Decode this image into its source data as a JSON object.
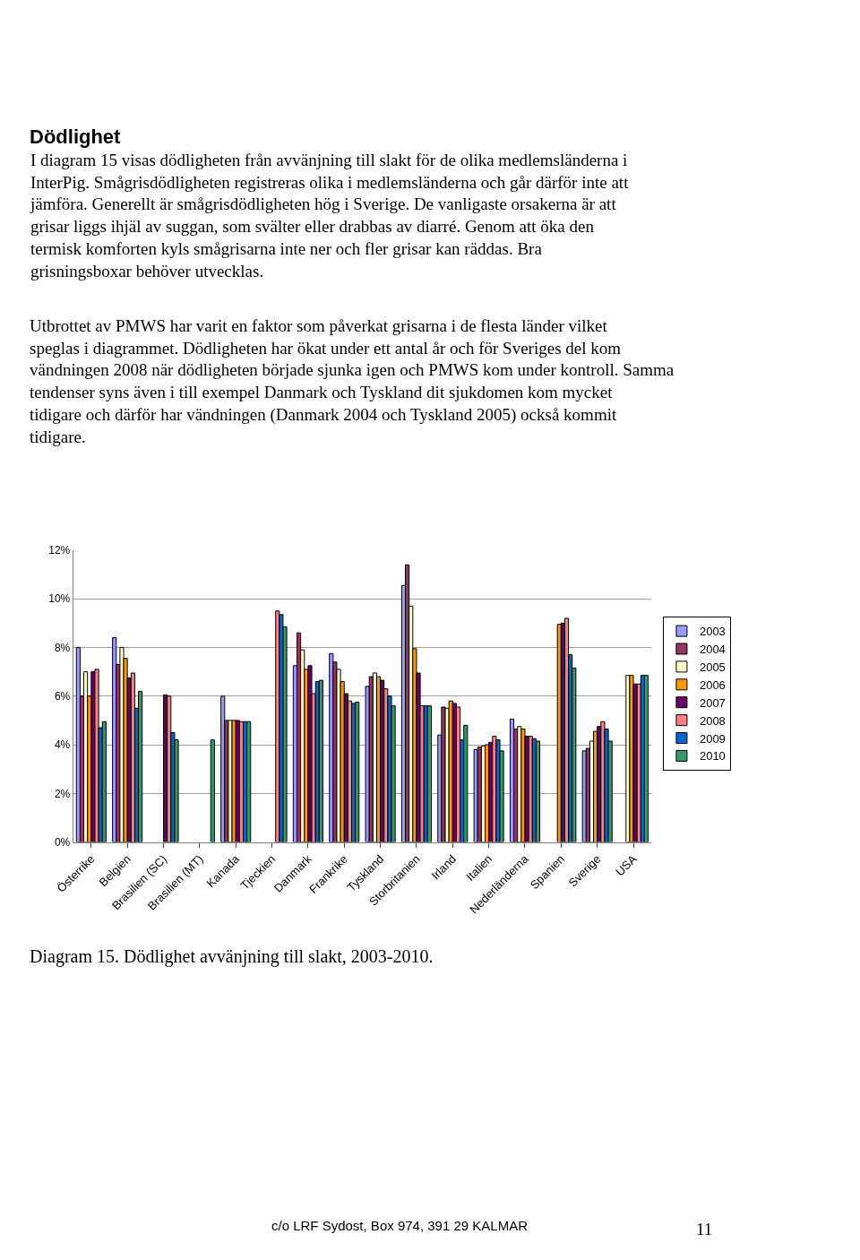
{
  "chart_data": {
    "type": "bar",
    "title": "Diagram 15. Dödlighet avvänjning till slakt, 2003-2010.",
    "annotations": [
      "Dödlighet",
      "I diagram 15 visas dödligheten från avvänjning till slakt för de olika medlemsländerna i InterPig. Smågrisdödligheten registreras olika i medlemsländerna och går därför inte att jämföra. Generellt är smågrisdödligheten hög i Sverige. De vanligaste orsakerna är att grisar liggs ihjäl av suggan, som svälter eller drabbas av diarré. Genom att öka den termisk komforten kyls smågrisarna inte ner och fler grisar kan räddas. Bra grisningsboxar behöver utvecklas.",
      "Utbrottet av PMWS har varit en faktor som påverkat grisarna i de flesta länder vilket speglas i diagrammet. Dödligheten har ökat under ett antal år och för Sveriges del kom vändningen 2008 när dödligheten började sjunka igen och PMWS kom under kontroll. Samma tendenser syns även i till exempel Danmark och Tyskland dit sjukdomen kom mycket tidigare och därför har vändningen (Danmark 2004 och Tyskland 2005) också kommit tidigare.",
      "c/o LRF Sydost, Box 974, 391 29 KALMAR",
      "11"
    ],
    "categories": [
      "Österrike",
      "Belgien",
      "Brasilien (SC)",
      "Brasilien (MT)",
      "Kanada",
      "Tjeckien",
      "Danmark",
      "Frankrike",
      "Tyskland",
      "Storbritanien",
      "Irland",
      "Italien",
      "Nederländerna",
      "Spanien",
      "Sverige",
      "USA"
    ],
    "series": [
      {
        "name": "2003",
        "color": "#9999ff",
        "values": [
          8.0,
          8.4,
          null,
          null,
          6.0,
          null,
          7.25,
          7.75,
          6.4,
          10.55,
          4.4,
          3.8,
          5.05,
          null,
          3.75,
          null
        ]
      },
      {
        "name": "2004",
        "color": "#993366",
        "values": [
          6.0,
          7.3,
          null,
          null,
          5.0,
          null,
          8.6,
          7.4,
          6.8,
          11.4,
          5.55,
          3.9,
          4.65,
          null,
          3.85,
          null
        ]
      },
      {
        "name": "2005",
        "color": "#ffffcc",
        "values": [
          7.0,
          8.0,
          null,
          null,
          5.0,
          null,
          7.9,
          7.1,
          6.95,
          9.7,
          5.5,
          3.95,
          4.75,
          null,
          4.15,
          6.85
        ]
      },
      {
        "name": "2006",
        "color": "#ff9900",
        "values": [
          6.0,
          7.55,
          null,
          null,
          5.0,
          null,
          7.1,
          6.6,
          6.8,
          7.95,
          5.8,
          4.0,
          4.65,
          8.95,
          4.55,
          6.85
        ]
      },
      {
        "name": "2007",
        "color": "#660066",
        "values": [
          7.0,
          6.75,
          6.05,
          null,
          5.0,
          null,
          7.25,
          6.1,
          6.65,
          6.95,
          5.7,
          4.1,
          4.35,
          9.0,
          4.75,
          6.5
        ]
      },
      {
        "name": "2008",
        "color": "#ff8080",
        "values": [
          7.1,
          6.95,
          6.0,
          null,
          4.95,
          9.5,
          6.1,
          5.8,
          6.3,
          5.6,
          5.55,
          4.35,
          4.35,
          9.2,
          4.95,
          6.5
        ]
      },
      {
        "name": "2009",
        "color": "#0066cc",
        "values": [
          4.7,
          5.5,
          4.5,
          null,
          4.95,
          9.35,
          6.6,
          5.7,
          6.0,
          5.6,
          4.2,
          4.2,
          4.25,
          7.7,
          4.65,
          6.85
        ]
      },
      {
        "name": "2010",
        "color": "#339966",
        "values": [
          4.95,
          6.2,
          4.2,
          4.2,
          4.95,
          8.85,
          6.65,
          5.75,
          5.6,
          5.6,
          4.8,
          3.75,
          4.15,
          7.15,
          4.15,
          6.85
        ]
      }
    ],
    "ylim": [
      0,
      12
    ],
    "yticks": [
      {
        "value": 0,
        "label": "0%"
      },
      {
        "value": 2,
        "label": "2%"
      },
      {
        "value": 4,
        "label": "4%"
      },
      {
        "value": 6,
        "label": "6%"
      },
      {
        "value": 8,
        "label": "8%"
      },
      {
        "value": 10,
        "label": "10%"
      },
      {
        "value": 12,
        "label": "12%"
      }
    ],
    "grid": "y",
    "legend": "right"
  }
}
